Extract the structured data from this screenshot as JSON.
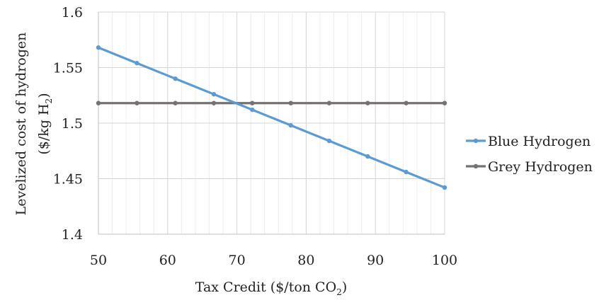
{
  "chart_data": {
    "type": "line",
    "x": [
      50,
      55.56,
      61.11,
      66.67,
      72.22,
      77.78,
      83.33,
      88.89,
      94.44,
      100
    ],
    "series": [
      {
        "name": "Blue Hydrogen",
        "color": "#5b9bd5",
        "values": [
          1.568,
          1.554,
          1.54,
          1.526,
          1.512,
          1.498,
          1.484,
          1.47,
          1.456,
          1.442
        ]
      },
      {
        "name": "Grey Hydrogen",
        "color": "#767171",
        "values": [
          1.518,
          1.518,
          1.518,
          1.518,
          1.518,
          1.518,
          1.518,
          1.518,
          1.518,
          1.518
        ]
      }
    ],
    "xlabel": "Tax Credit ($/ton CO",
    "xlabel_sub": "2",
    "xlabel_close": ")",
    "ylabel_line1": "Levelized cost of hydrogen",
    "ylabel_line2": "($/kg H",
    "ylabel_sub": "2",
    "ylabel_close": ")",
    "xlim": [
      50,
      100
    ],
    "ylim": [
      1.4,
      1.6
    ],
    "xticks": [
      50,
      60,
      70,
      80,
      90,
      100
    ],
    "xtick_labels": [
      "50",
      "60",
      "70",
      "80",
      "90",
      "100"
    ],
    "yticks": [
      1.4,
      1.45,
      1.5,
      1.55,
      1.6
    ],
    "ytick_labels": [
      "1.4",
      "1.45",
      "1.5",
      "1.55",
      "1.6"
    ],
    "grid": "major and minor vertical, major horizontal",
    "legend_position": "right"
  }
}
